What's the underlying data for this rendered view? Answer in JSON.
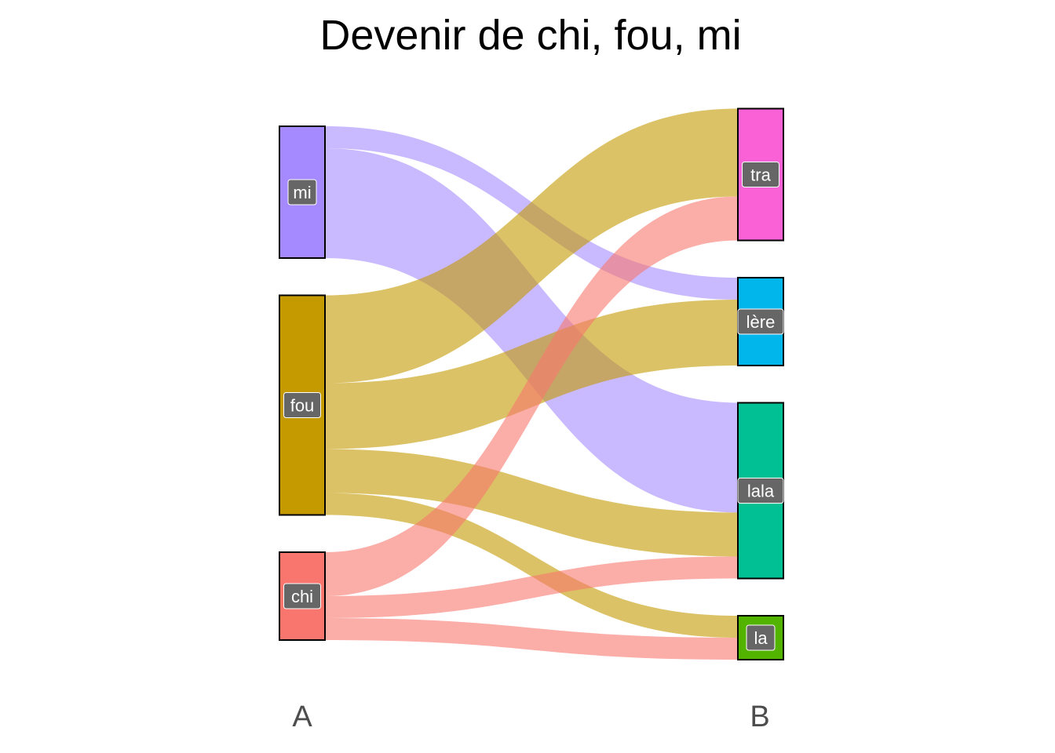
{
  "chart_data": {
    "type": "sankey",
    "title": "Devenir de chi, fou, mi",
    "axes": [
      "A",
      "B"
    ],
    "nodes_A": [
      {
        "id": "mi",
        "label": "mi",
        "color": "#A58AFF"
      },
      {
        "id": "fou",
        "label": "fou",
        "color": "#C49A00"
      },
      {
        "id": "chi",
        "label": "chi",
        "color": "#F8766D"
      }
    ],
    "nodes_B": [
      {
        "id": "tra",
        "label": "tra",
        "color": "#FB61D7"
      },
      {
        "id": "lere",
        "label": "lère",
        "color": "#00B6EB"
      },
      {
        "id": "lala",
        "label": "lala",
        "color": "#00C094"
      },
      {
        "id": "la",
        "label": "la",
        "color": "#53B400"
      }
    ],
    "flows": [
      {
        "from": "mi",
        "to": "lere",
        "value": 1.0
      },
      {
        "from": "mi",
        "to": "lala",
        "value": 5.0
      },
      {
        "from": "fou",
        "to": "tra",
        "value": 4.0
      },
      {
        "from": "fou",
        "to": "lere",
        "value": 3.0
      },
      {
        "from": "fou",
        "to": "lala",
        "value": 2.0
      },
      {
        "from": "fou",
        "to": "la",
        "value": 1.0
      },
      {
        "from": "chi",
        "to": "tra",
        "value": 2.0
      },
      {
        "from": "chi",
        "to": "lala",
        "value": 1.0
      },
      {
        "from": "chi",
        "to": "la",
        "value": 1.0
      }
    ],
    "flow_opacity": 0.6
  }
}
